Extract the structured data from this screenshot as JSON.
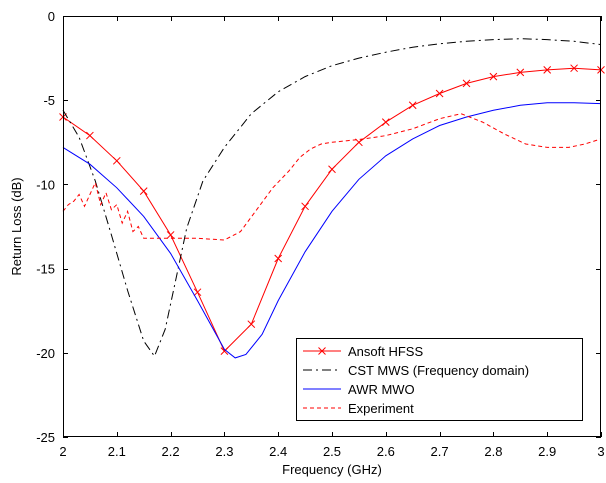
{
  "chart_data": {
    "type": "line",
    "title": "",
    "xlabel": "Frequency (GHz)",
    "ylabel": "Return Loss (dB)",
    "xlim": [
      2,
      3
    ],
    "ylim": [
      -25,
      0
    ],
    "xticks": [
      2,
      2.1,
      2.2,
      2.3,
      2.4,
      2.5,
      2.6,
      2.7,
      2.8,
      2.9,
      3
    ],
    "xtick_labels": [
      "2",
      "2.1",
      "2.2",
      "2.3",
      "2.4",
      "2.5",
      "2.6",
      "2.7",
      "2.8",
      "2.9",
      "3"
    ],
    "yticks": [
      0,
      -5,
      -10,
      -15,
      -20,
      -25
    ],
    "ytick_labels": [
      "0",
      "-5",
      "-10",
      "-15",
      "-20",
      "-25"
    ],
    "grid": false,
    "legend_position": "bottom-right",
    "series": [
      {
        "name": "Ansoft HFSS",
        "color": "#ff0000",
        "style": "solid-x-markers",
        "x": [
          2.0,
          2.05,
          2.1,
          2.15,
          2.2,
          2.25,
          2.3,
          2.35,
          2.4,
          2.45,
          2.5,
          2.55,
          2.6,
          2.65,
          2.7,
          2.75,
          2.8,
          2.85,
          2.9,
          2.95,
          3.0
        ],
        "y": [
          -6.0,
          -7.1,
          -8.6,
          -10.4,
          -13.0,
          -16.4,
          -19.9,
          -18.3,
          -14.4,
          -11.3,
          -9.1,
          -7.5,
          -6.3,
          -5.3,
          -4.6,
          -4.0,
          -3.6,
          -3.35,
          -3.2,
          -3.1,
          -3.2
        ]
      },
      {
        "name": "CST MWS (Frequency domain)",
        "color": "#000000",
        "style": "dashdot",
        "x": [
          2.0,
          2.03,
          2.06,
          2.09,
          2.12,
          2.15,
          2.17,
          2.19,
          2.21,
          2.23,
          2.26,
          2.3,
          2.35,
          2.4,
          2.45,
          2.5,
          2.55,
          2.6,
          2.65,
          2.7,
          2.75,
          2.8,
          2.85,
          2.9,
          2.95,
          3.0
        ],
        "y": [
          -5.6,
          -7.2,
          -9.8,
          -13.0,
          -16.3,
          -19.3,
          -20.2,
          -18.6,
          -15.6,
          -12.6,
          -9.8,
          -7.8,
          -5.8,
          -4.5,
          -3.6,
          -2.95,
          -2.5,
          -2.15,
          -1.85,
          -1.65,
          -1.5,
          -1.4,
          -1.35,
          -1.4,
          -1.5,
          -1.7
        ]
      },
      {
        "name": "AWR MWO",
        "color": "#0000ff",
        "style": "solid",
        "x": [
          2.0,
          2.05,
          2.1,
          2.15,
          2.2,
          2.25,
          2.3,
          2.32,
          2.34,
          2.37,
          2.4,
          2.45,
          2.5,
          2.55,
          2.6,
          2.65,
          2.7,
          2.75,
          2.8,
          2.85,
          2.9,
          2.95,
          3.0
        ],
        "y": [
          -7.8,
          -8.8,
          -10.2,
          -11.9,
          -14.1,
          -16.9,
          -19.8,
          -20.3,
          -20.1,
          -18.9,
          -16.9,
          -14.0,
          -11.6,
          -9.7,
          -8.3,
          -7.3,
          -6.5,
          -6.0,
          -5.6,
          -5.3,
          -5.15,
          -5.15,
          -5.2
        ]
      },
      {
        "name": "Experiment",
        "color": "#ff0000",
        "style": "dashed",
        "x": [
          2.0,
          2.01,
          2.02,
          2.03,
          2.04,
          2.05,
          2.06,
          2.07,
          2.08,
          2.09,
          2.1,
          2.11,
          2.12,
          2.13,
          2.14,
          2.15,
          2.2,
          2.25,
          2.3,
          2.33,
          2.36,
          2.39,
          2.42,
          2.44,
          2.46,
          2.48,
          2.5,
          2.53,
          2.56,
          2.6,
          2.65,
          2.7,
          2.74,
          2.78,
          2.82,
          2.86,
          2.9,
          2.94,
          2.97,
          3.0
        ],
        "y": [
          -11.6,
          -11.2,
          -11.0,
          -10.6,
          -11.3,
          -10.6,
          -9.9,
          -11.2,
          -10.5,
          -11.5,
          -11.2,
          -12.3,
          -11.6,
          -12.8,
          -12.5,
          -13.2,
          -13.2,
          -13.2,
          -13.3,
          -12.8,
          -11.5,
          -10.2,
          -9.2,
          -8.4,
          -7.9,
          -7.6,
          -7.5,
          -7.4,
          -7.3,
          -7.1,
          -6.7,
          -6.1,
          -5.8,
          -6.3,
          -7.0,
          -7.6,
          -7.8,
          -7.8,
          -7.6,
          -7.3
        ]
      }
    ]
  }
}
